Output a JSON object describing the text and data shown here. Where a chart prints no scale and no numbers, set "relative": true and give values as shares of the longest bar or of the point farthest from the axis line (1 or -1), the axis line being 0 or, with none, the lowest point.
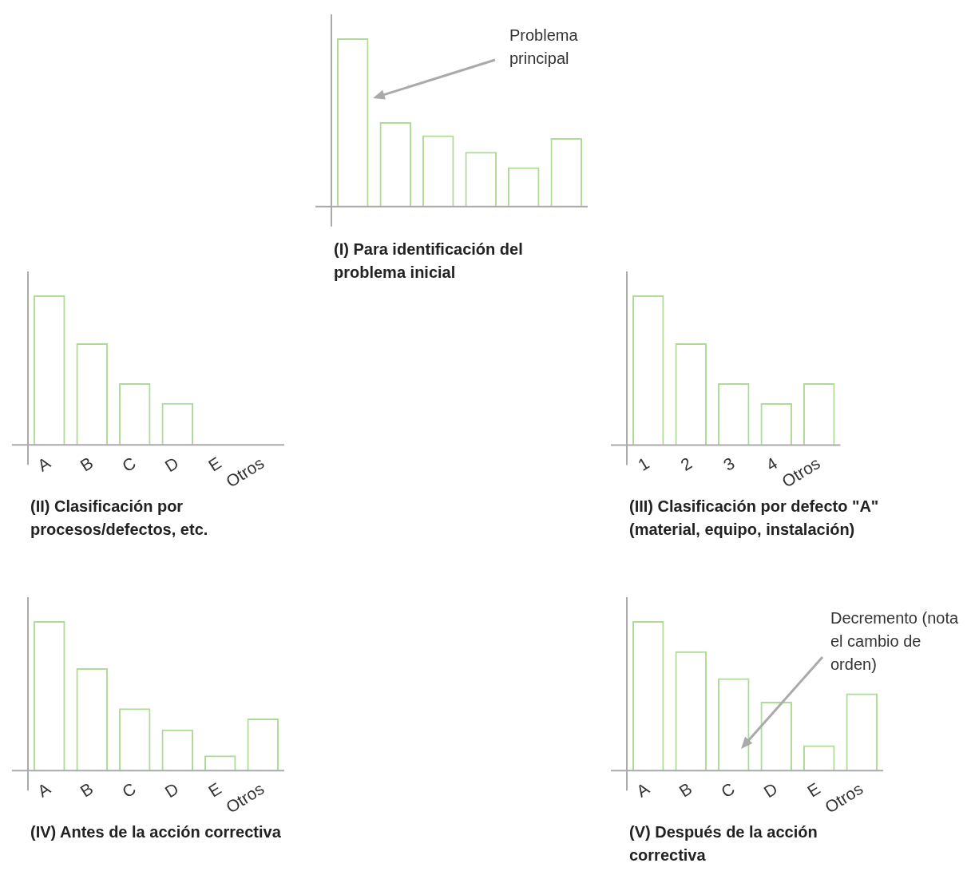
{
  "chart_data": [
    {
      "type": "bar",
      "title": "(I) Para identificación del problema inicial",
      "categories": [
        null,
        null,
        null,
        null,
        null,
        null
      ],
      "values": [
        1,
        0.502,
        0.424,
        0.325,
        0.234,
        0.407
      ],
      "color": "#aedb97",
      "relative": true,
      "annotations": [
        "Problema principal"
      ]
    },
    {
      "type": "bar",
      "title": "(II) Clasificación por procesos/defectos, etc.",
      "categories": [
        "A",
        "B",
        "C",
        "D",
        "E",
        "Otros"
      ],
      "values": [
        1,
        0.68,
        0.413,
        0.28,
        null,
        null
      ],
      "color": "#aedb97",
      "relative": true
    },
    {
      "type": "bar",
      "title": "(III) Clasificación por defecto \"A\" (material, equipo, instalación)",
      "categories": [
        "1",
        "2",
        "3",
        "4",
        "Otros"
      ],
      "values": [
        1,
        0.68,
        0.413,
        0.28,
        0.413
      ],
      "color": "#aedb97",
      "relative": true
    },
    {
      "type": "bar",
      "title": "(IV) Antes de la acción correctiva",
      "categories": [
        "A",
        "B",
        "C",
        "D",
        "E",
        "Otros"
      ],
      "values": [
        1,
        0.685,
        0.416,
        0.275,
        0.101,
        0.349
      ],
      "color": "#aedb97",
      "relative": true
    },
    {
      "type": "bar",
      "title": "(V) Después de la acción correctiva",
      "categories": [
        "A",
        "B",
        "C",
        "D",
        "E",
        "Otros"
      ],
      "values": [
        1,
        0.798,
        0.618,
        0.461,
        0.169,
        0.517
      ],
      "color": "#aedb97",
      "relative": true,
      "annotations": [
        "Decremento (nota el cambio de orden)"
      ]
    }
  ]
}
